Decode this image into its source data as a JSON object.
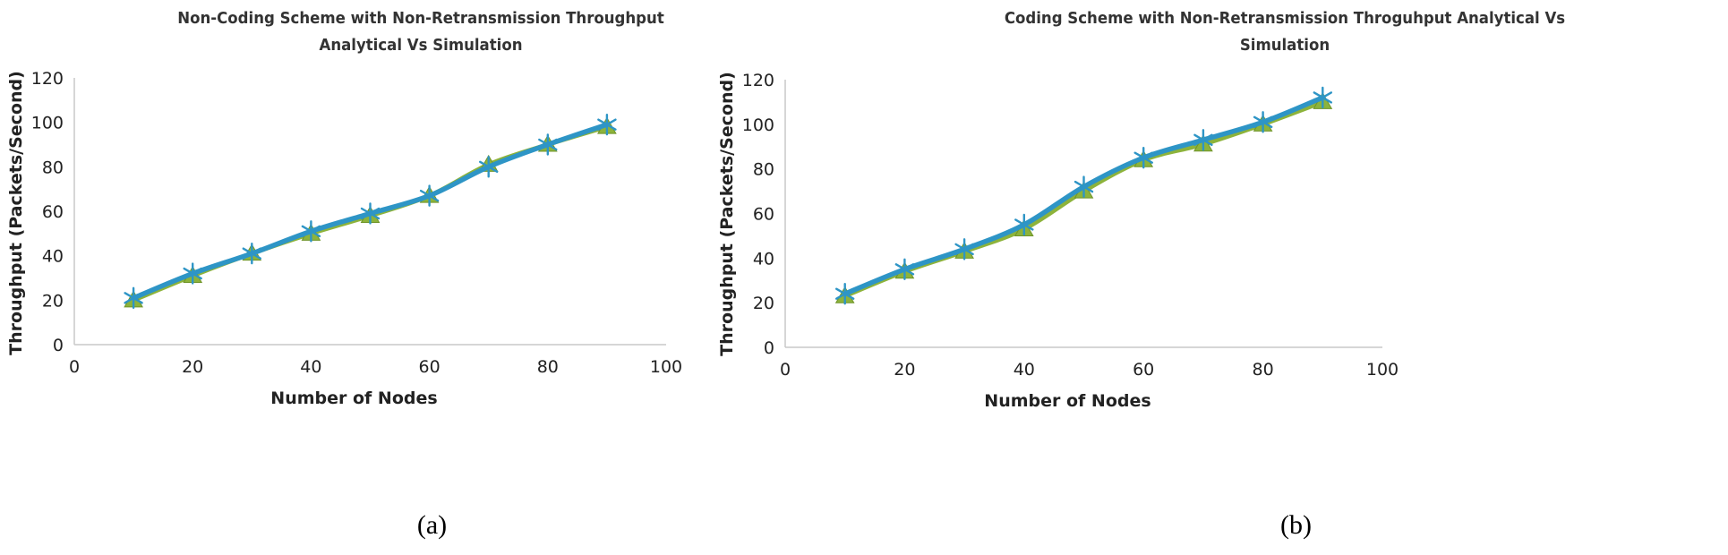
{
  "chart_data": [
    {
      "type": "line",
      "title": "Non-Coding Scheme with Non-Retransmission Throughput Analytical  Vs Simulation",
      "title_lines": [
        "Non-Coding Scheme with Non-Retransmission Throughput",
        "Analytical  Vs Simulation"
      ],
      "xlabel": "Number of Nodes",
      "ylabel": "Throughput (Packets/Second)",
      "caption": "(a)",
      "xlim": [
        0,
        100
      ],
      "ylim": [
        0,
        120
      ],
      "xticks": [
        0,
        20,
        40,
        60,
        80,
        100
      ],
      "yticks": [
        0,
        20,
        40,
        60,
        80,
        100,
        120
      ],
      "x": [
        10,
        20,
        30,
        40,
        50,
        60,
        70,
        80,
        90
      ],
      "series": [
        {
          "name": "Analytical",
          "color": "#8db33b",
          "marker": "triangle",
          "values": [
            20,
            31,
            41,
            50,
            58,
            67,
            81,
            90,
            98
          ]
        },
        {
          "name": "Simulation",
          "color": "#2e95c6",
          "marker": "star",
          "values": [
            21,
            32,
            41,
            51,
            59,
            67,
            80,
            90,
            99
          ]
        }
      ]
    },
    {
      "type": "line",
      "title": "Coding Scheme with Non-Retransmission  Throguhput  Analytical  Vs Simulation",
      "title_lines": [
        "Coding Scheme with Non-Retransmission  Throguhput  Analytical  Vs",
        "Simulation"
      ],
      "xlabel": "Number of Nodes",
      "ylabel": "Throughput (Packets/Second)",
      "caption": "(b)",
      "xlim": [
        0,
        100
      ],
      "ylim": [
        0,
        120
      ],
      "xticks": [
        0,
        20,
        40,
        60,
        80,
        100
      ],
      "yticks": [
        0,
        20,
        40,
        60,
        80,
        100,
        120
      ],
      "x": [
        10,
        20,
        30,
        40,
        50,
        60,
        70,
        80,
        90
      ],
      "series": [
        {
          "name": "Analytical",
          "color": "#8db33b",
          "marker": "triangle",
          "values": [
            23,
            34,
            43,
            53,
            70,
            84,
            91,
            100,
            110
          ]
        },
        {
          "name": "Simulation",
          "color": "#2e95c6",
          "marker": "star",
          "values": [
            24,
            35,
            44,
            55,
            72,
            85,
            93,
            101,
            112
          ]
        }
      ]
    }
  ]
}
